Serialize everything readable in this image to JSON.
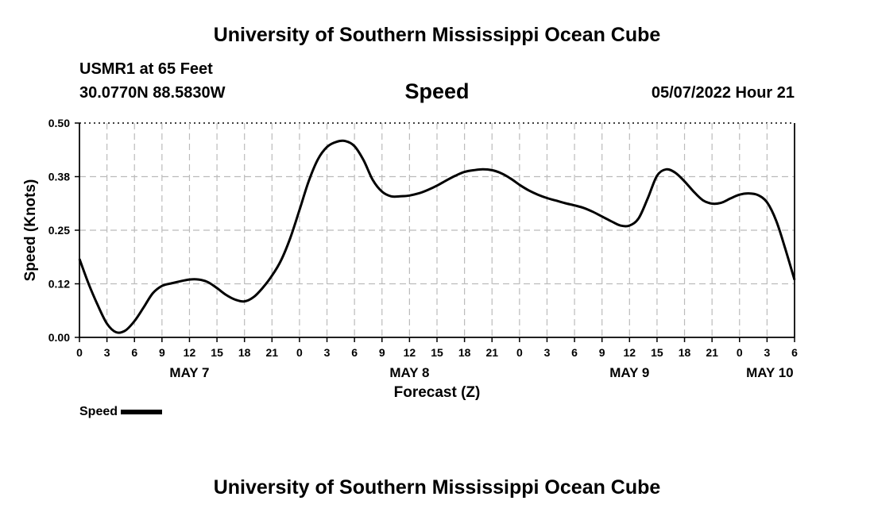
{
  "header": {
    "title": "University of Southern Mississippi Ocean Cube",
    "station": "USMR1 at 65 Feet",
    "coords": "30.0770N  88.5830W",
    "parameter": "Speed",
    "datetime": "05/07/2022 Hour 21"
  },
  "footer": {
    "title": "University of Southern Mississippi Ocean Cube"
  },
  "legend": {
    "label": "Speed"
  },
  "colors": {
    "line": "#000000",
    "grid": "#bbbbbb",
    "background": "#ffffff"
  },
  "chart_data": {
    "type": "line",
    "title": "Speed",
    "xlabel": "Forecast (Z)",
    "ylabel": "Speed (Knots)",
    "x_unit": "hours from 0Z May 7",
    "xlim": [
      0,
      78
    ],
    "ylim": [
      0,
      0.5
    ],
    "grid": true,
    "legend_position": "bottom-left",
    "y_ticks": [
      {
        "value": 0.0,
        "label": "0.00"
      },
      {
        "value": 0.125,
        "label": "0.12"
      },
      {
        "value": 0.25,
        "label": "0.25"
      },
      {
        "value": 0.375,
        "label": "0.38"
      },
      {
        "value": 0.5,
        "label": "0.50"
      }
    ],
    "x_ticks": [
      {
        "value": 0,
        "label": "0"
      },
      {
        "value": 3,
        "label": "3"
      },
      {
        "value": 6,
        "label": "6"
      },
      {
        "value": 9,
        "label": "9"
      },
      {
        "value": 12,
        "label": "12"
      },
      {
        "value": 15,
        "label": "15"
      },
      {
        "value": 18,
        "label": "18"
      },
      {
        "value": 21,
        "label": "21"
      },
      {
        "value": 24,
        "label": "0"
      },
      {
        "value": 27,
        "label": "3"
      },
      {
        "value": 30,
        "label": "6"
      },
      {
        "value": 33,
        "label": "9"
      },
      {
        "value": 36,
        "label": "12"
      },
      {
        "value": 39,
        "label": "15"
      },
      {
        "value": 42,
        "label": "18"
      },
      {
        "value": 45,
        "label": "21"
      },
      {
        "value": 48,
        "label": "0"
      },
      {
        "value": 51,
        "label": "3"
      },
      {
        "value": 54,
        "label": "6"
      },
      {
        "value": 57,
        "label": "9"
      },
      {
        "value": 60,
        "label": "12"
      },
      {
        "value": 63,
        "label": "15"
      },
      {
        "value": 66,
        "label": "18"
      },
      {
        "value": 69,
        "label": "21"
      },
      {
        "value": 72,
        "label": "0"
      },
      {
        "value": 75,
        "label": "3"
      },
      {
        "value": 78,
        "label": "6"
      }
    ],
    "day_labels": [
      {
        "value": 12,
        "label": "MAY 7"
      },
      {
        "value": 36,
        "label": "MAY 8"
      },
      {
        "value": 60,
        "label": "MAY 9"
      },
      {
        "value": 75.3,
        "label": "MAY 10"
      }
    ],
    "series": [
      {
        "name": "Speed",
        "x": [
          0,
          1,
          2,
          3,
          4,
          5,
          6,
          7,
          8,
          9,
          10,
          11,
          12,
          13,
          14,
          15,
          16,
          17,
          18,
          19,
          20,
          21,
          22,
          23,
          24,
          25,
          26,
          27,
          28,
          29,
          30,
          31,
          32,
          33,
          34,
          35,
          36,
          37,
          38,
          39,
          40,
          41,
          42,
          43,
          44,
          45,
          46,
          47,
          48,
          49,
          50,
          51,
          52,
          53,
          54,
          55,
          56,
          57,
          58,
          59,
          60,
          61,
          62,
          63,
          64,
          65,
          66,
          67,
          68,
          69,
          70,
          71,
          72,
          73,
          74,
          75,
          76,
          77,
          78
        ],
        "values": [
          0.183,
          0.125,
          0.075,
          0.032,
          0.012,
          0.016,
          0.038,
          0.07,
          0.103,
          0.12,
          0.126,
          0.131,
          0.135,
          0.135,
          0.129,
          0.115,
          0.099,
          0.088,
          0.084,
          0.094,
          0.116,
          0.144,
          0.18,
          0.232,
          0.297,
          0.364,
          0.415,
          0.444,
          0.456,
          0.458,
          0.446,
          0.413,
          0.367,
          0.34,
          0.329,
          0.329,
          0.331,
          0.336,
          0.344,
          0.354,
          0.366,
          0.377,
          0.386,
          0.39,
          0.392,
          0.39,
          0.383,
          0.371,
          0.356,
          0.343,
          0.333,
          0.325,
          0.319,
          0.313,
          0.308,
          0.302,
          0.293,
          0.282,
          0.271,
          0.261,
          0.261,
          0.278,
          0.325,
          0.377,
          0.392,
          0.384,
          0.364,
          0.34,
          0.32,
          0.312,
          0.314,
          0.324,
          0.333,
          0.336,
          0.332,
          0.315,
          0.272,
          0.206,
          0.134
        ]
      }
    ]
  }
}
